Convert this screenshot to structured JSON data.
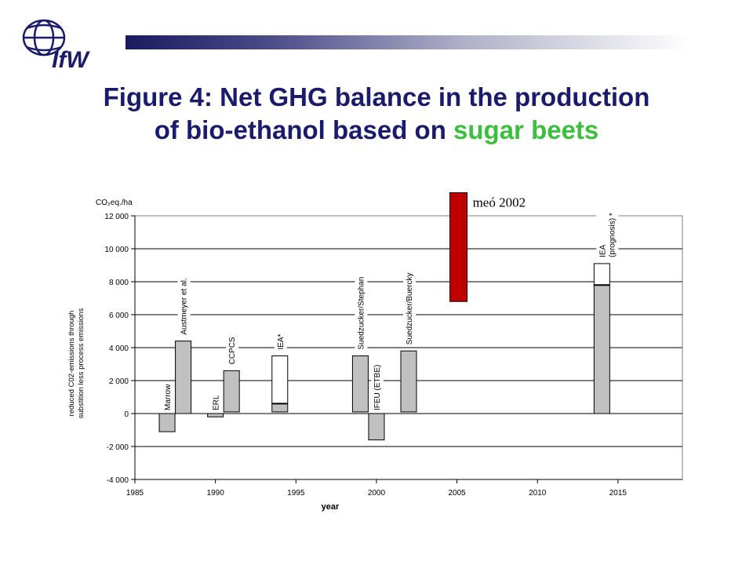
{
  "logo": {
    "text": "IfW",
    "icon": "globe-icon"
  },
  "title": {
    "line1": "Figure 4: Net GHG balance in the production",
    "line2_prefix": "of bio-ethanol based on ",
    "line2_highlight": "sugar beets"
  },
  "colors": {
    "title": "#1b1b6e",
    "highlight": "#3cbf3c",
    "bar_gray": "#c0c0c0",
    "bar_red": "#c00000"
  },
  "chart_data": {
    "type": "bar",
    "y_unit_label": "CO₂eq./ha",
    "ylabel": "reduced C02-emissions through substition less process emissions",
    "xlabel": "year",
    "xlim": [
      1985,
      2019
    ],
    "ylim": [
      -4000,
      12000
    ],
    "x_ticks": [
      1985,
      1990,
      1995,
      2000,
      2005,
      2010,
      2015
    ],
    "y_ticks": [
      -4000,
      -2000,
      0,
      2000,
      4000,
      6000,
      8000,
      10000,
      12000
    ],
    "y_tick_labels": [
      "-4 000",
      "-2 000",
      "0",
      "2 000",
      "4 000",
      "6 000",
      "8 000",
      "10 000",
      "12 000"
    ],
    "grid": true,
    "bars": [
      {
        "label": "Marrow",
        "x": 1987,
        "low": -1100,
        "high": 0,
        "fill": "gray"
      },
      {
        "label": "Austmeyer et al.",
        "x": 1988,
        "low": 0,
        "high": 4400,
        "fill": "gray"
      },
      {
        "label": "ERL",
        "x": 1990,
        "low": -200,
        "high": 0,
        "fill": "gray"
      },
      {
        "label": "CCPCS",
        "x": 1991,
        "low": 100,
        "high": 2600,
        "fill": "gray"
      },
      {
        "label": "IEA*",
        "x": 1994,
        "low": 100,
        "high": 3500,
        "split": 600,
        "fill": "gray-white"
      },
      {
        "label": "Suedzucker/Stephan",
        "x": 1999,
        "low": 100,
        "high": 3500,
        "fill": "gray"
      },
      {
        "label": "IFEU (ETBE)",
        "x": 2000,
        "low": -1600,
        "high": 0,
        "fill": "gray"
      },
      {
        "label": "Suedzucker/Buercky",
        "x": 2002,
        "low": 100,
        "high": 3800,
        "fill": "gray"
      },
      {
        "label": "meó 2002",
        "x": 2005,
        "low": 6800,
        "high": 13400,
        "fill": "red"
      },
      {
        "label": "IEA (prognosis) *",
        "x": 2014,
        "low": 0,
        "high": 9100,
        "split": 7800,
        "fill": "gray-white"
      }
    ]
  }
}
